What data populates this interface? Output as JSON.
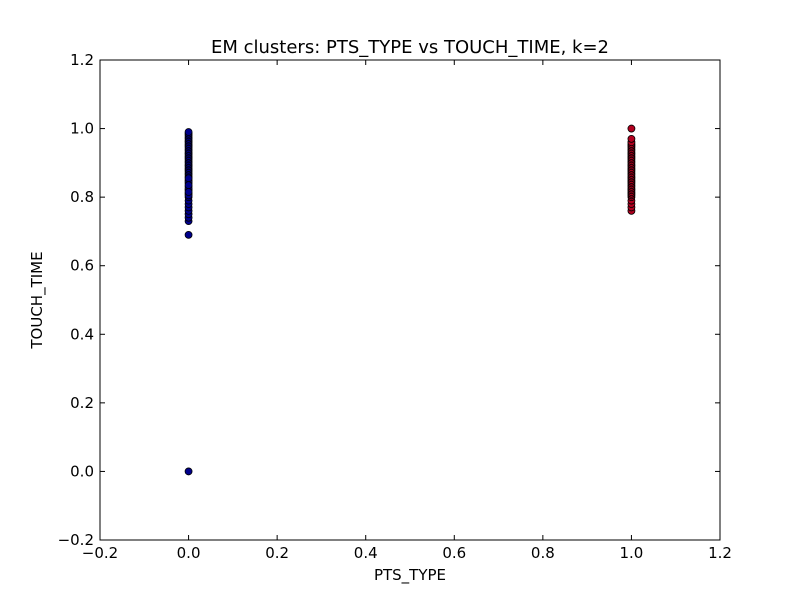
{
  "chart_data": {
    "type": "scatter",
    "title": "EM clusters: PTS_TYPE vs TOUCH_TIME, k=2",
    "xlabel": "PTS_TYPE",
    "ylabel": "TOUCH_TIME",
    "xlim": [
      -0.2,
      1.2
    ],
    "ylim": [
      -0.2,
      1.2
    ],
    "xticks": [
      -0.2,
      0.0,
      0.2,
      0.4,
      0.6,
      0.8,
      1.0,
      1.2
    ],
    "yticks": [
      -0.2,
      0.0,
      0.2,
      0.4,
      0.6,
      0.8,
      1.0,
      1.2
    ],
    "xtick_labels": [
      "−0.2",
      "0.0",
      "0.2",
      "0.4",
      "0.6",
      "0.8",
      "1.0",
      "1.2"
    ],
    "ytick_labels": [
      "−0.2",
      "0.0",
      "0.2",
      "0.4",
      "0.6",
      "0.8",
      "1.0",
      "1.2"
    ],
    "grid": false,
    "series": [
      {
        "color": "#00008b",
        "x": [
          0,
          0,
          0,
          0,
          0,
          0,
          0,
          0,
          0,
          0,
          0,
          0,
          0,
          0,
          0,
          0,
          0,
          0,
          0,
          0,
          0,
          0,
          0,
          0,
          0,
          0,
          0,
          0,
          0,
          0,
          0,
          0,
          0,
          0,
          0,
          0,
          0,
          0,
          0,
          0,
          0,
          0,
          0,
          0,
          0,
          0,
          0,
          0
        ],
        "y": [
          0.0,
          0.69,
          0.73,
          0.74,
          0.75,
          0.76,
          0.77,
          0.78,
          0.79,
          0.8,
          0.81,
          0.82,
          0.83,
          0.84,
          0.85,
          0.86,
          0.865,
          0.87,
          0.875,
          0.88,
          0.885,
          0.89,
          0.895,
          0.9,
          0.905,
          0.91,
          0.915,
          0.92,
          0.925,
          0.93,
          0.935,
          0.94,
          0.945,
          0.95,
          0.955,
          0.96,
          0.965,
          0.97,
          0.975,
          0.98,
          0.985,
          0.99,
          0.845,
          0.855,
          0.825,
          0.835,
          0.805,
          0.815
        ]
      },
      {
        "color": "#b2001f",
        "x": [
          1,
          1,
          1,
          1,
          1,
          1,
          1,
          1,
          1,
          1,
          1,
          1,
          1,
          1,
          1,
          1,
          1,
          1,
          1,
          1,
          1,
          1,
          1,
          1,
          1,
          1,
          1,
          1,
          1,
          1,
          1,
          1,
          1,
          1,
          1,
          1,
          1,
          1,
          1
        ],
        "y": [
          0.76,
          0.77,
          0.78,
          0.79,
          0.8,
          0.805,
          0.81,
          0.815,
          0.82,
          0.825,
          0.83,
          0.835,
          0.84,
          0.845,
          0.85,
          0.855,
          0.86,
          0.865,
          0.87,
          0.875,
          0.88,
          0.885,
          0.89,
          0.895,
          0.9,
          0.905,
          0.91,
          0.915,
          0.92,
          0.925,
          0.93,
          0.935,
          0.94,
          0.945,
          0.95,
          0.955,
          0.96,
          0.97,
          1.0
        ]
      }
    ]
  }
}
